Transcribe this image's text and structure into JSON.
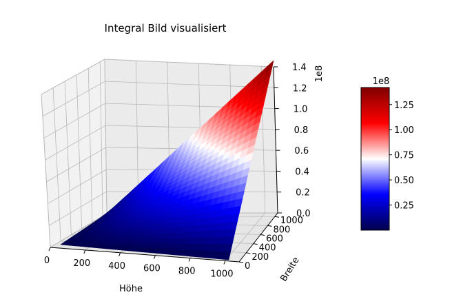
{
  "chart_data": {
    "type": "surface3d",
    "title": "Integral Bild visualisiert",
    "xlabel": "Höhe",
    "ylabel": "Breite",
    "zlabel": "",
    "x_range": [
      0,
      1079
    ],
    "y_range": [
      0,
      1079
    ],
    "z_offset_text": "1e8",
    "x_ticks": [
      "0",
      "200",
      "400",
      "600",
      "800",
      "1000"
    ],
    "y_ticks": [
      "0",
      "200",
      "400",
      "600",
      "800",
      "1000"
    ],
    "z_ticks": [
      "0.0",
      "0.2",
      "0.4",
      "0.6",
      "0.8",
      "1.0",
      "1.2",
      "1.4"
    ],
    "surface": {
      "description": "integral image: z(x,y) grows approximately with x*y",
      "z_max": 142000000.0,
      "z_at_x_max_y_0": 0.0,
      "z_at_x_0_y_max": 0.0,
      "z_at_x_max_y_max": 142000000.0
    },
    "colormap": "seismic",
    "colorbar": {
      "offset_text": "1e8",
      "ticks": [
        "0.25",
        "0.50",
        "0.75",
        "1.00",
        "1.25"
      ],
      "range": [
        0.0,
        1.42
      ]
    },
    "grid": true
  }
}
